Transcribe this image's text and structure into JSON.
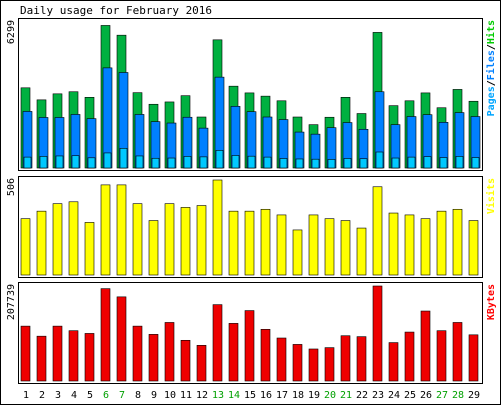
{
  "chart_data": [
    {
      "type": "bar",
      "title": "Daily usage for February 2016",
      "ymax_label": "6299",
      "ymax": 6299,
      "legend": [
        {
          "label": "Pages",
          "color": "#00a5ff"
        },
        {
          "label": "/",
          "color": "#000000"
        },
        {
          "label": "Files",
          "color": "#0080ff"
        },
        {
          "label": "/",
          "color": "#000000"
        },
        {
          "label": "Hits",
          "color": "#00cc00"
        }
      ],
      "categories": [
        "1",
        "2",
        "3",
        "4",
        "5",
        "6",
        "7",
        "8",
        "9",
        "10",
        "11",
        "12",
        "13",
        "14",
        "15",
        "16",
        "17",
        "18",
        "19",
        "20",
        "21",
        "22",
        "23",
        "24",
        "25",
        "26",
        "27",
        "28",
        "29"
      ],
      "series": [
        {
          "name": "Hits",
          "color": "#00b040",
          "values": [
            3460,
            2940,
            3200,
            3290,
            3050,
            6150,
            5730,
            3250,
            2750,
            2850,
            3120,
            2200,
            5530,
            3530,
            3240,
            3100,
            2900,
            2200,
            1870,
            2190,
            3050,
            2350,
            5850,
            2690,
            2900,
            3240,
            2600,
            3390,
            2880
          ]
        },
        {
          "name": "Files",
          "color": "#0080ff",
          "values": [
            2440,
            2180,
            2180,
            2310,
            2130,
            4320,
            4120,
            2310,
            2000,
            1940,
            2190,
            1720,
            3920,
            2660,
            2430,
            2200,
            2090,
            1550,
            1460,
            1740,
            1960,
            1670,
            3290,
            1870,
            2220,
            2300,
            1970,
            2390,
            2220
          ]
        },
        {
          "name": "Pages",
          "color": "#00c8ff",
          "values": [
            470,
            500,
            520,
            530,
            440,
            650,
            850,
            520,
            420,
            430,
            500,
            480,
            760,
            540,
            510,
            470,
            410,
            390,
            380,
            370,
            410,
            400,
            690,
            430,
            470,
            490,
            450,
            500,
            450
          ]
        }
      ]
    },
    {
      "type": "bar",
      "ymax_label": "506",
      "ymax": 506,
      "legend": [
        {
          "label": "Visits",
          "color": "#ffff00"
        }
      ],
      "categories": [
        "1",
        "2",
        "3",
        "4",
        "5",
        "6",
        "7",
        "8",
        "9",
        "10",
        "11",
        "12",
        "13",
        "14",
        "15",
        "16",
        "17",
        "18",
        "19",
        "20",
        "21",
        "22",
        "23",
        "24",
        "25",
        "26",
        "27",
        "28",
        "29"
      ],
      "series": [
        {
          "name": "Visits",
          "color": "#ffff00",
          "values": [
            300,
            340,
            380,
            390,
            280,
            480,
            480,
            380,
            290,
            380,
            360,
            370,
            506,
            340,
            340,
            350,
            320,
            240,
            320,
            300,
            290,
            250,
            470,
            330,
            320,
            300,
            340,
            350,
            290
          ]
        }
      ]
    },
    {
      "type": "bar",
      "ymax_label": "207739",
      "ymax": 207739,
      "legend": [
        {
          "label": "KBytes",
          "color": "#ff0000"
        }
      ],
      "categories": [
        "1",
        "2",
        "3",
        "4",
        "5",
        "6",
        "7",
        "8",
        "9",
        "10",
        "11",
        "12",
        "13",
        "14",
        "15",
        "16",
        "17",
        "18",
        "19",
        "20",
        "21",
        "22",
        "23",
        "24",
        "25",
        "26",
        "27",
        "28",
        "29"
      ],
      "series": [
        {
          "name": "KBytes",
          "color": "#ee0000",
          "values": [
            120000,
            98000,
            120000,
            110000,
            104000,
            202000,
            184000,
            120000,
            102000,
            128000,
            89000,
            78000,
            167000,
            126000,
            154000,
            113000,
            94000,
            80000,
            70000,
            73000,
            99000,
            97000,
            207739,
            84000,
            107000,
            153000,
            110000,
            128000,
            101000
          ]
        }
      ]
    }
  ],
  "xaxis": {
    "labels": [
      "1",
      "2",
      "3",
      "4",
      "5",
      "6",
      "7",
      "8",
      "9",
      "10",
      "11",
      "12",
      "13",
      "14",
      "15",
      "16",
      "17",
      "18",
      "19",
      "20",
      "21",
      "22",
      "23",
      "24",
      "25",
      "26",
      "27",
      "28",
      "29"
    ],
    "weekend": [
      6,
      7,
      13,
      14,
      20,
      21,
      27,
      28
    ]
  },
  "colors": {
    "weekday": "#000000",
    "weekend": "#00a000",
    "frame": "#000000",
    "grid": "#c0c0c0",
    "panel_bg": "#ffffff",
    "background": "#ffffff"
  }
}
